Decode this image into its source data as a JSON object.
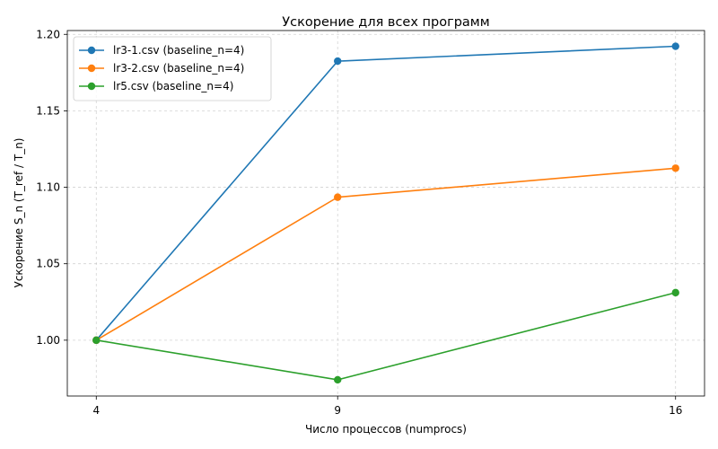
{
  "chart_data": {
    "type": "line",
    "title": "Ускорение для всех программ",
    "xlabel": "Число процессов (numprocs)",
    "ylabel": "Ускорение S_n (T_ref / T_n)",
    "x": [
      4,
      9,
      16
    ],
    "xticks": [
      "4",
      "9",
      "16"
    ],
    "yticks": [
      "1.00",
      "1.05",
      "1.10",
      "1.15",
      "1.20"
    ],
    "xlim": [
      3.4,
      16.6
    ],
    "ylim": [
      0.9635,
      1.2025
    ],
    "grid": true,
    "legend_position": "top-left",
    "series": [
      {
        "name": "lr3-1.csv (baseline_n=4)",
        "color": "#1f77b4",
        "values": [
          1.0,
          1.1825,
          1.1922
        ]
      },
      {
        "name": "lr3-2.csv (baseline_n=4)",
        "color": "#ff7f0e",
        "values": [
          1.0,
          1.0935,
          1.1125
        ]
      },
      {
        "name": "lr5.csv (baseline_n=4)",
        "color": "#2ca02c",
        "values": [
          1.0,
          0.9741,
          1.0311
        ]
      }
    ]
  }
}
